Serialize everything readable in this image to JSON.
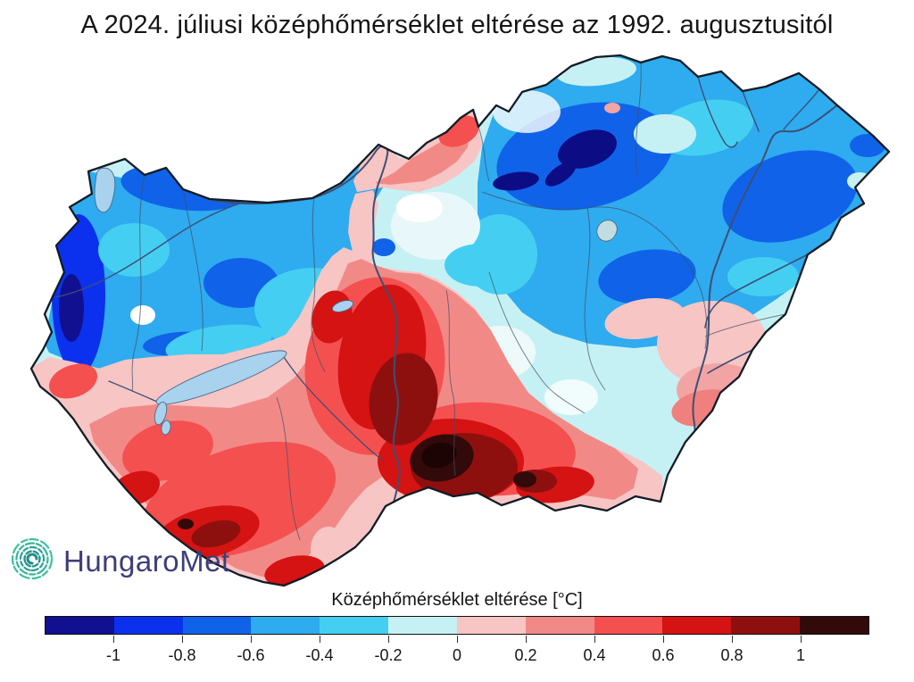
{
  "title": "A 2024. júliusi középhőmérséklet eltérése az 1992. augusztusitól",
  "logo": {
    "text": "HungaroMet",
    "icon": "spiral-logo-icon",
    "icon_color": "#2ea99a",
    "text_color": "#3c3e78"
  },
  "legend": {
    "label": "Középhőmérséklet eltérése [°C]",
    "tick_labels": [
      "-1",
      "-0.8",
      "-0.6",
      "-0.4",
      "-0.2",
      "0",
      "0.2",
      "0.4",
      "0.6",
      "0.8",
      "1"
    ],
    "segment_colors": [
      "#101090",
      "#0b31ee",
      "#1063e8",
      "#2fabef",
      "#44cff2",
      "#c6f1f4",
      "#f7c5c4",
      "#f18a87",
      "#f4504f",
      "#d41312",
      "#8d100f",
      "#320a0a"
    ]
  },
  "chart_data": {
    "type": "heatmap",
    "title": "A 2024. júliusi középhőmérséklet eltérése az 1992. augusztusitól",
    "region": "Hungary",
    "legend_label": "Középhőmérséklet eltérése [°C]",
    "scale_ticks": [
      -1,
      -0.8,
      -0.6,
      -0.4,
      -0.2,
      0,
      0.2,
      0.4,
      0.6,
      0.8,
      1
    ],
    "scale_colors": [
      "#101090",
      "#0b31ee",
      "#1063e8",
      "#2fabef",
      "#44cff2",
      "#c6f1f4",
      "#f7c5c4",
      "#f18a87",
      "#f4504f",
      "#d41312",
      "#8d100f",
      "#320a0a"
    ],
    "pattern_summary": "negative anomaly (blue) in north and north-east, positive anomaly (red) in south-west and south-centre, strongest warm anomaly above +1 °C south of centre, strongest cold anomaly below -1 °C in the north-east hills"
  }
}
